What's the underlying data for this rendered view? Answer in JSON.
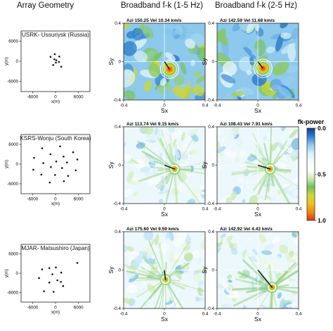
{
  "headers": {
    "array": "Array Geometry",
    "fk1": "Broadband f-k (1-5 Hz)",
    "fk2": "Broadband f-k (2-5 Hz)"
  },
  "colorbar": {
    "title": "fk-power",
    "ticks": [
      "0.0",
      "0.5",
      "1.0"
    ],
    "stops": [
      "#0a3f8f",
      "#2f7fd0",
      "#8fcbee",
      "#d9f0f8",
      "#f3fbfd",
      "#ffffff",
      "#cdeab0",
      "#74c060",
      "#c8d83a",
      "#f1c21b",
      "#ef8a12",
      "#d7391b"
    ]
  },
  "chart_data": [
    {
      "type": "scatter",
      "name": "USRK",
      "title": "USRK- Ussuriysk (Russia)",
      "xlabel": "x(m)",
      "ylabel": "y(m)",
      "xlim": [
        -9000,
        9000
      ],
      "ylim": [
        -9000,
        9000
      ],
      "xticks": [
        "-6000",
        "0",
        "6000"
      ],
      "yticks": [
        "6000",
        "0",
        "-6000"
      ],
      "points": [
        [
          -1300,
          1300
        ],
        [
          -200,
          2100
        ],
        [
          1000,
          1400
        ],
        [
          -300,
          600
        ],
        [
          200,
          300
        ],
        [
          100,
          -400
        ],
        [
          900,
          -200
        ],
        [
          -600,
          -1100
        ],
        [
          1500,
          -1600
        ]
      ]
    },
    {
      "type": "scatter",
      "name": "KSRS",
      "title": "KSRS-Wonju (South Korea)",
      "xlabel": "x(m)",
      "ylabel": "y(m)",
      "xlim": [
        -9000,
        9000
      ],
      "ylim": [
        -9000,
        9000
      ],
      "xticks": [
        "-6000",
        "0",
        "6000"
      ],
      "yticks": [
        "6000",
        "0",
        "-6000"
      ],
      "points": [
        [
          -3500,
          4800
        ],
        [
          1200,
          5400
        ],
        [
          4600,
          3600
        ],
        [
          -1300,
          3000
        ],
        [
          2100,
          2300
        ],
        [
          -5600,
          1900
        ],
        [
          5700,
          1400
        ],
        [
          -3200,
          300
        ],
        [
          200,
          800
        ],
        [
          3000,
          500
        ],
        [
          -1200,
          -900
        ],
        [
          1700,
          -1200
        ],
        [
          -5800,
          -1700
        ],
        [
          5300,
          -1900
        ],
        [
          -3700,
          -3200
        ],
        [
          -100,
          -3300
        ],
        [
          3300,
          -3600
        ],
        [
          -1500,
          -5600
        ],
        [
          2200,
          -5200
        ]
      ]
    },
    {
      "type": "scatter",
      "name": "MJAR",
      "title": "MJAR- Matsushiro (Japan)",
      "xlabel": "x(m)",
      "ylabel": "y(m)",
      "xlim": [
        -9000,
        9000
      ],
      "ylim": [
        -9000,
        9000
      ],
      "xticks": [
        "-6000",
        "0",
        "6000"
      ],
      "yticks": [
        "6000",
        "0",
        "-6000"
      ],
      "points": [
        [
          -3500,
          1200
        ],
        [
          -1600,
          1600
        ],
        [
          100,
          1800
        ],
        [
          5700,
          3200
        ],
        [
          -800,
          -300
        ],
        [
          1500,
          200
        ],
        [
          -4300,
          -1500
        ],
        [
          -1600,
          -2900
        ],
        [
          500,
          -2200
        ],
        [
          1400,
          -2700
        ],
        [
          2000,
          -4000
        ],
        [
          -3000,
          -5600
        ],
        [
          -500,
          -5800
        ]
      ]
    },
    {
      "type": "heatmap",
      "name": "USRK f-k 1-5 Hz",
      "label": "Azi 150.25   Vel 10.34 km/s",
      "xlabel": "Sx",
      "ylabel": "Sy",
      "xlim": [
        -0.4,
        0.4
      ],
      "ylim": [
        -0.4,
        0.4
      ],
      "xticks": [
        "-0.4",
        "0",
        "0.4"
      ],
      "yticks": [
        "0.4",
        "0",
        "-0.4"
      ],
      "peak": [
        0.05,
        -0.08
      ],
      "arrow_to": [
        0.05,
        -0.08
      ]
    },
    {
      "type": "heatmap",
      "name": "USRK f-k 2-5 Hz",
      "label": "Azi 142.59   Vel 11.68 km/s",
      "xlabel": "Sx",
      "ylabel": "Sy",
      "xlim": [
        -0.4,
        0.4
      ],
      "ylim": [
        -0.4,
        0.4
      ],
      "xticks": [
        "-0.4",
        "0",
        "0.4"
      ],
      "yticks": [
        "0.4",
        "0",
        "-0.4"
      ],
      "peak": [
        0.05,
        -0.07
      ],
      "arrow_to": [
        0.05,
        -0.07
      ]
    },
    {
      "type": "heatmap",
      "name": "KSRS f-k 1-5 Hz",
      "label": "Azi 113.74   Vel 9.15 km/s",
      "xlabel": "Sx",
      "ylabel": "Sy",
      "xlim": [
        -0.4,
        0.4
      ],
      "ylim": [
        -0.4,
        0.4
      ],
      "xticks": [
        "-0.4",
        "0",
        "0.4"
      ],
      "yticks": [
        "0.4",
        "0",
        "-0.4"
      ],
      "peak": [
        0.1,
        -0.04
      ],
      "arrow_to": [
        0.1,
        -0.04
      ]
    },
    {
      "type": "heatmap",
      "name": "KSRS f-k 2-5 Hz",
      "label": "Azi 108.43   Vel 7.91 km/s",
      "xlabel": "Sx",
      "ylabel": "Sy",
      "xlim": [
        -0.4,
        0.4
      ],
      "ylim": [
        -0.4,
        0.4
      ],
      "xticks": [
        "-0.4",
        "0",
        "0.4"
      ],
      "yticks": [
        "0.4",
        "0",
        "-0.4"
      ],
      "peak": [
        0.12,
        -0.04
      ],
      "arrow_to": [
        0.12,
        -0.04
      ]
    },
    {
      "type": "heatmap",
      "name": "MJAR f-k 1-5 Hz",
      "label": "Azi 175.60   Vel 9.59 km/s",
      "xlabel": "Sx",
      "ylabel": "Sy",
      "xlim": [
        -0.4,
        0.4
      ],
      "ylim": [
        -0.4,
        0.4
      ],
      "xticks": [
        "-0.4",
        "0",
        "0.4"
      ],
      "yticks": [
        "0.4",
        "0",
        "-0.4"
      ],
      "peak": [
        0.01,
        -0.1
      ],
      "arrow_to": [
        0.01,
        -0.1
      ]
    },
    {
      "type": "heatmap",
      "name": "MJAR f-k 2-5 Hz",
      "label": "Azi 142.92   Vel 4.43 km/s",
      "xlabel": "Sx",
      "ylabel": "Sy",
      "xlim": [
        -0.4,
        0.4
      ],
      "ylim": [
        -0.4,
        0.4
      ],
      "xticks": [
        "-0.4",
        "0",
        "0.4"
      ],
      "yticks": [
        "0.4",
        "0",
        "-0.4"
      ],
      "peak": [
        0.14,
        -0.18
      ],
      "arrow_to": [
        0.14,
        -0.18
      ]
    }
  ]
}
